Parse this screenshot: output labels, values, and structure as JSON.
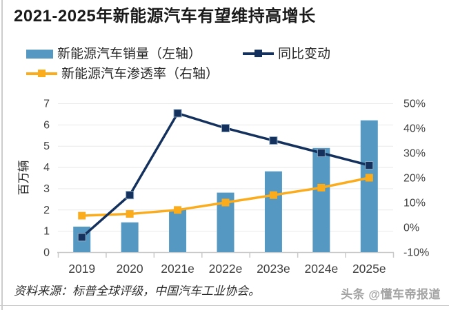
{
  "header": {
    "title": "2021-2025年新能源汽车有望维持高增长"
  },
  "legend": [
    {
      "label": "新能源汽车销量（左轴）",
      "icon": "bar-swatch",
      "series": "sales"
    },
    {
      "label": "同比变动",
      "icon": "line-square-marker",
      "series": "yoy"
    },
    {
      "label": "新能源汽车渗透率（右轴）",
      "icon": "line-square-marker",
      "series": "penetration"
    }
  ],
  "chart_data": {
    "type": "bar+line combo",
    "title": "2021-2025年新能源汽车有望维持高增长",
    "categories": [
      "2019",
      "2020",
      "2021e",
      "2022e",
      "2023e",
      "2024e",
      "2025e"
    ],
    "series": [
      {
        "name": "新能源汽车销量（左轴）",
        "type": "bar",
        "axis": "left",
        "color": "#5599C2",
        "values": [
          1.2,
          1.4,
          2.0,
          2.8,
          3.8,
          4.9,
          6.2
        ],
        "unit": "百万辆"
      },
      {
        "name": "同比变动",
        "type": "line",
        "axis": "right",
        "color": "#13315C",
        "values": [
          -4,
          13,
          46,
          40,
          35,
          30,
          25
        ],
        "unit": "%"
      },
      {
        "name": "新能源汽车渗透率（右轴）",
        "type": "line",
        "axis": "right",
        "color": "#FBAC1D",
        "values": [
          4.7,
          5.4,
          7,
          10,
          13,
          16,
          20
        ],
        "unit": "%"
      }
    ],
    "left_axis": {
      "label": "百万辆",
      "min": 0,
      "max": 7,
      "ticks": [
        0,
        1,
        2,
        3,
        4,
        5,
        6,
        7
      ]
    },
    "right_axis": {
      "label": "",
      "min": -10,
      "max": 50,
      "ticks": [
        -10,
        0,
        10,
        20,
        30,
        40,
        50
      ],
      "tick_suffix": "%"
    },
    "grid": true,
    "legend_position": "top-left"
  },
  "footer": {
    "source": "资料来源：标普全球评级，中国汽车工业协会。",
    "watermark": "头条 @懂车帝报道"
  },
  "colors": {
    "title_text": "#1a1a1a",
    "legend_text": "#262626",
    "tick_text": "#404040",
    "axis_title_text": "#262626",
    "grid_line": "#e9e9e9",
    "axis_line": "#c9c9c9",
    "source_text": "#2e2e2e",
    "watermark_text": "#a3a3a3",
    "page_border": "#cccccc",
    "yoy_marker_stroke": "#8ca6c0"
  }
}
